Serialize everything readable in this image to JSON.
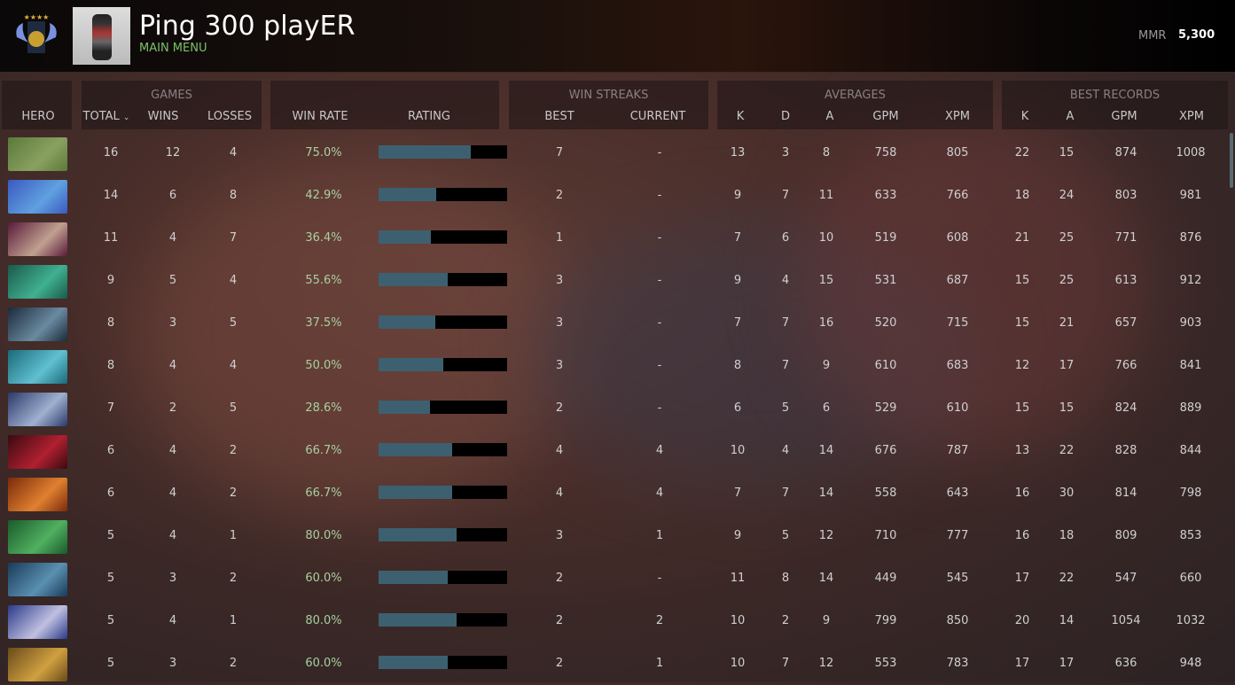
{
  "header": {
    "player_name": "Ping 300 playER",
    "menu_link": "MAIN MENU",
    "mmr_label": "MMR",
    "mmr_value": "5,300"
  },
  "groups": {
    "games": "GAMES",
    "win_streaks": "WIN STREAKS",
    "averages": "AVERAGES",
    "best_records": "BEST RECORDS"
  },
  "columns": {
    "hero": "HERO",
    "total": "TOTAL",
    "wins": "WINS",
    "losses": "LOSSES",
    "win_rate": "WIN RATE",
    "rating": "RATING",
    "best": "BEST",
    "current": "CURRENT",
    "k": "K",
    "d": "D",
    "a": "A",
    "gpm": "GPM",
    "xpm": "XPM",
    "bk": "K",
    "ba": "A",
    "bgpm": "GPM",
    "bxpm": "XPM"
  },
  "colors": {
    "win_rate": "#a8d0a0",
    "rating_fill": "#3d6070",
    "menu": "#7cc06a"
  },
  "rows": [
    {
      "hero_colors": [
        "#5a7a3a",
        "#8aa060"
      ],
      "total": "16",
      "wins": "12",
      "losses": "4",
      "win_rate": "75.0%",
      "rating": 0.72,
      "best": "7",
      "current": "-",
      "k": "13",
      "d": "3",
      "a": "8",
      "gpm": "758",
      "xpm": "805",
      "bk": "22",
      "ba": "15",
      "bgpm": "874",
      "bxpm": "1008"
    },
    {
      "hero_colors": [
        "#3a5ac0",
        "#60a0e0"
      ],
      "total": "14",
      "wins": "6",
      "losses": "8",
      "win_rate": "42.9%",
      "rating": 0.45,
      "best": "2",
      "current": "-",
      "k": "9",
      "d": "7",
      "a": "11",
      "gpm": "633",
      "xpm": "766",
      "bk": "18",
      "ba": "24",
      "bgpm": "803",
      "bxpm": "981"
    },
    {
      "hero_colors": [
        "#5a1a3a",
        "#c0a090"
      ],
      "total": "11",
      "wins": "4",
      "losses": "7",
      "win_rate": "36.4%",
      "rating": 0.41,
      "best": "1",
      "current": "-",
      "k": "7",
      "d": "6",
      "a": "10",
      "gpm": "519",
      "xpm": "608",
      "bk": "21",
      "ba": "25",
      "bgpm": "771",
      "bxpm": "876"
    },
    {
      "hero_colors": [
        "#1a5a4a",
        "#40b090"
      ],
      "total": "9",
      "wins": "5",
      "losses": "4",
      "win_rate": "55.6%",
      "rating": 0.54,
      "best": "3",
      "current": "-",
      "k": "9",
      "d": "4",
      "a": "15",
      "gpm": "531",
      "xpm": "687",
      "bk": "15",
      "ba": "25",
      "bgpm": "613",
      "bxpm": "912"
    },
    {
      "hero_colors": [
        "#1a2a3a",
        "#6a8aa0"
      ],
      "total": "8",
      "wins": "3",
      "losses": "5",
      "win_rate": "37.5%",
      "rating": 0.44,
      "best": "3",
      "current": "-",
      "k": "7",
      "d": "7",
      "a": "16",
      "gpm": "520",
      "xpm": "715",
      "bk": "15",
      "ba": "21",
      "bgpm": "657",
      "bxpm": "903"
    },
    {
      "hero_colors": [
        "#1a6a7a",
        "#60c0d0"
      ],
      "total": "8",
      "wins": "4",
      "losses": "4",
      "win_rate": "50.0%",
      "rating": 0.5,
      "best": "3",
      "current": "-",
      "k": "8",
      "d": "7",
      "a": "9",
      "gpm": "610",
      "xpm": "683",
      "bk": "12",
      "ba": "17",
      "bgpm": "766",
      "bxpm": "841"
    },
    {
      "hero_colors": [
        "#2a3a6a",
        "#a0b0d0"
      ],
      "total": "7",
      "wins": "2",
      "losses": "5",
      "win_rate": "28.6%",
      "rating": 0.4,
      "best": "2",
      "current": "-",
      "k": "6",
      "d": "5",
      "a": "6",
      "gpm": "529",
      "xpm": "610",
      "bk": "15",
      "ba": "15",
      "bgpm": "824",
      "bxpm": "889"
    },
    {
      "hero_colors": [
        "#3a0a10",
        "#b02030"
      ],
      "total": "6",
      "wins": "4",
      "losses": "2",
      "win_rate": "66.7%",
      "rating": 0.57,
      "best": "4",
      "current": "4",
      "k": "10",
      "d": "4",
      "a": "14",
      "gpm": "676",
      "xpm": "787",
      "bk": "13",
      "ba": "22",
      "bgpm": "828",
      "bxpm": "844"
    },
    {
      "hero_colors": [
        "#7a2a0a",
        "#e08030"
      ],
      "total": "6",
      "wins": "4",
      "losses": "2",
      "win_rate": "66.7%",
      "rating": 0.57,
      "best": "4",
      "current": "4",
      "k": "7",
      "d": "7",
      "a": "14",
      "gpm": "558",
      "xpm": "643",
      "bk": "16",
      "ba": "30",
      "bgpm": "814",
      "bxpm": "798"
    },
    {
      "hero_colors": [
        "#1a5a2a",
        "#50b060"
      ],
      "total": "5",
      "wins": "4",
      "losses": "1",
      "win_rate": "80.0%",
      "rating": 0.61,
      "best": "3",
      "current": "1",
      "k": "9",
      "d": "5",
      "a": "12",
      "gpm": "710",
      "xpm": "777",
      "bk": "16",
      "ba": "18",
      "bgpm": "809",
      "bxpm": "853"
    },
    {
      "hero_colors": [
        "#1a3a5a",
        "#5a90b0"
      ],
      "total": "5",
      "wins": "3",
      "losses": "2",
      "win_rate": "60.0%",
      "rating": 0.54,
      "best": "2",
      "current": "-",
      "k": "11",
      "d": "8",
      "a": "14",
      "gpm": "449",
      "xpm": "545",
      "bk": "17",
      "ba": "22",
      "bgpm": "547",
      "bxpm": "660"
    },
    {
      "hero_colors": [
        "#2a3a8a",
        "#c0c0e0"
      ],
      "total": "5",
      "wins": "4",
      "losses": "1",
      "win_rate": "80.0%",
      "rating": 0.61,
      "best": "2",
      "current": "2",
      "k": "10",
      "d": "2",
      "a": "9",
      "gpm": "799",
      "xpm": "850",
      "bk": "20",
      "ba": "14",
      "bgpm": "1054",
      "bxpm": "1032"
    },
    {
      "hero_colors": [
        "#6a4a1a",
        "#d0a040"
      ],
      "total": "5",
      "wins": "3",
      "losses": "2",
      "win_rate": "60.0%",
      "rating": 0.54,
      "best": "2",
      "current": "1",
      "k": "10",
      "d": "7",
      "a": "12",
      "gpm": "553",
      "xpm": "783",
      "bk": "17",
      "ba": "17",
      "bgpm": "636",
      "bxpm": "948"
    }
  ]
}
